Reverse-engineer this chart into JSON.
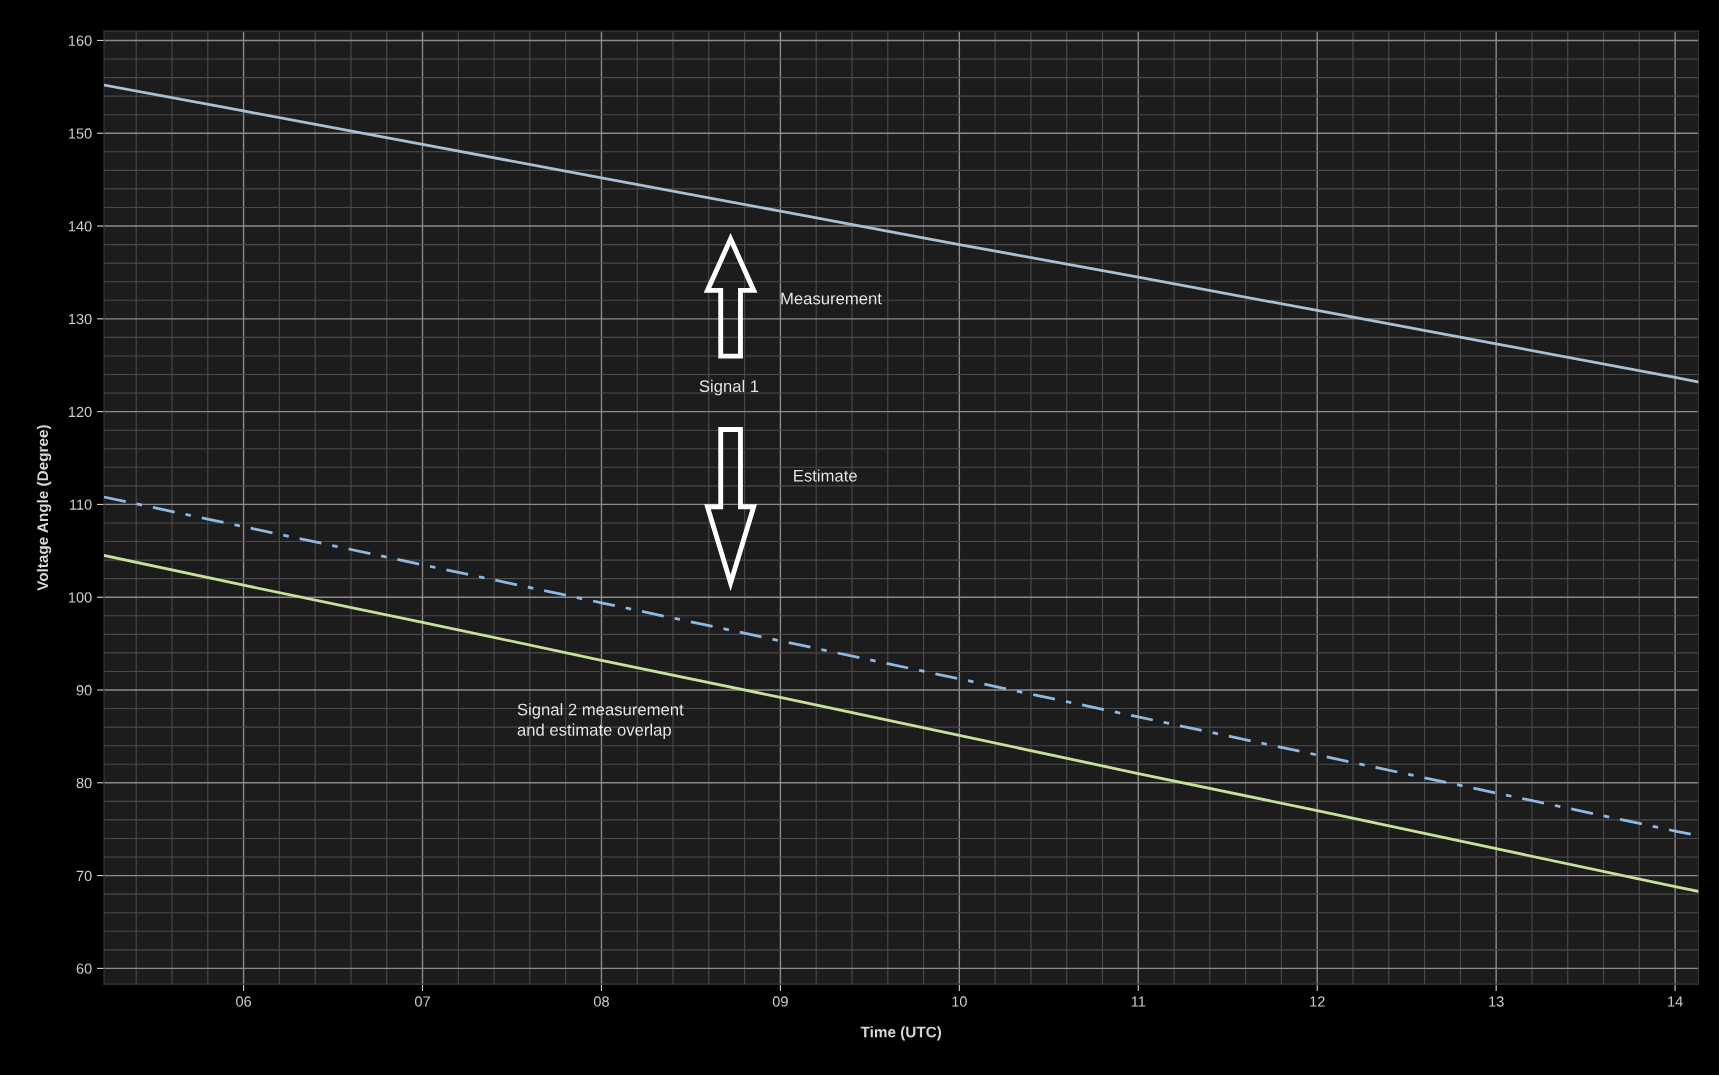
{
  "chart_data": {
    "type": "line",
    "xlabel": "Time (UTC)",
    "ylabel": "Voltage Angle (Degree)",
    "x": [
      5.22,
      6,
      7,
      8,
      9,
      10,
      11,
      12,
      13,
      14,
      14.13
    ],
    "series": [
      {
        "color": "#a9bfd6",
        "line_style": "solid",
        "values": [
          155.2,
          152.4,
          148.8,
          145.2,
          141.6,
          138.0,
          134.5,
          130.9,
          127.3,
          123.7,
          123.2
        ]
      },
      {
        "color": "#8fb8e0",
        "line_style": "dashed",
        "values": [
          110.8,
          107.6,
          103.5,
          99.4,
          95.3,
          91.2,
          87.1,
          83.0,
          78.9,
          74.8,
          74.3
        ]
      },
      {
        "color": "#c8e09a",
        "line_style": "solid",
        "values": [
          104.5,
          101.3,
          97.3,
          93.2,
          89.2,
          85.1,
          81.0,
          77.0,
          72.9,
          68.8,
          68.3
        ]
      }
    ],
    "xlim": [
      5.22,
      14.13
    ],
    "xticks": [
      {
        "value": 6,
        "label": "06"
      },
      {
        "value": 7,
        "label": "07"
      },
      {
        "value": 8,
        "label": "08"
      },
      {
        "value": 9,
        "label": "09"
      },
      10,
      11,
      12,
      13,
      14
    ],
    "ylim": [
      58.3,
      161
    ],
    "yticks": [
      60,
      70,
      80,
      90,
      100,
      110,
      120,
      130,
      140,
      150,
      160
    ],
    "grid": true,
    "marker": "none",
    "annotations": [
      "Measurement",
      "Signal 1",
      "Estimate",
      "Signal 2 measurement\nand estimate overlap"
    ]
  }
}
